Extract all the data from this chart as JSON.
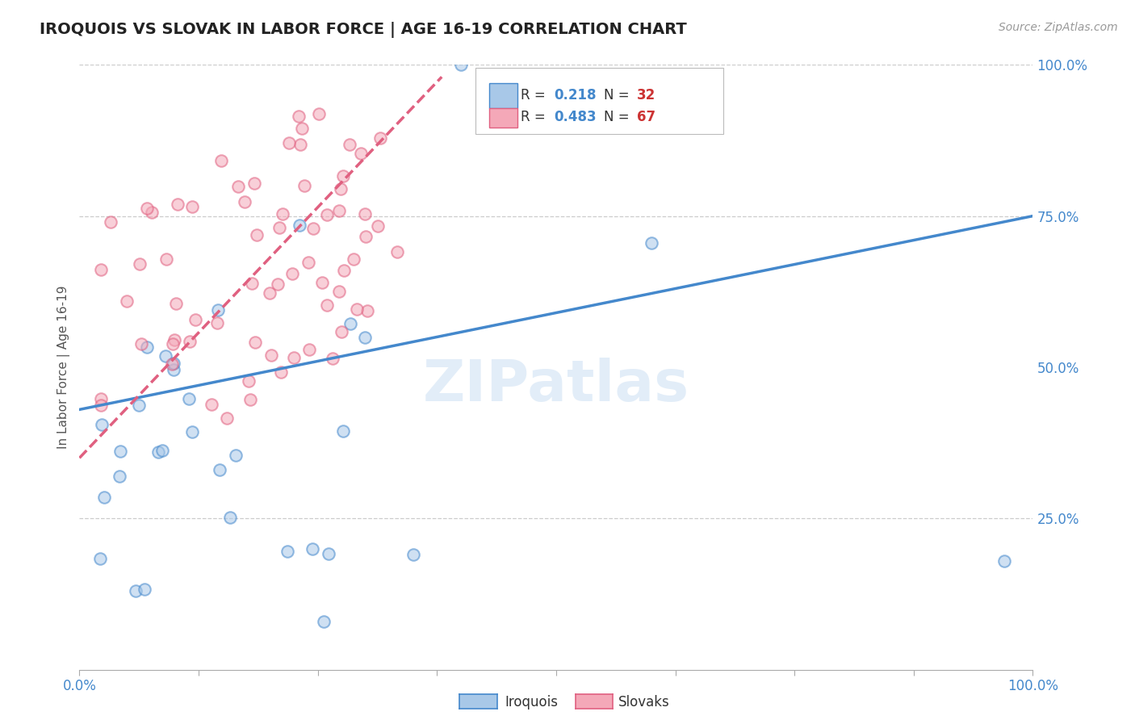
{
  "title": "IROQUOIS VS SLOVAK IN LABOR FORCE | AGE 16-19 CORRELATION CHART",
  "source": "Source: ZipAtlas.com",
  "ylabel": "In Labor Force | Age 16-19",
  "watermark": "ZIPatlas",
  "xlim": [
    0.0,
    1.0
  ],
  "ylim": [
    0.0,
    1.0
  ],
  "legend_R1": "0.218",
  "legend_N1": "32",
  "legend_R2": "0.483",
  "legend_N2": "67",
  "color_iroquois": "#a8c8e8",
  "color_slovak": "#f4a8b8",
  "color_line_iroquois": "#4488cc",
  "color_line_slovak": "#e06080",
  "background_color": "#ffffff",
  "grid_color": "#cccccc",
  "marker_size": 110,
  "marker_alpha": 0.55,
  "marker_edge_width": 1.5,
  "iroquois_line_x0": 0.0,
  "iroquois_line_y0": 0.43,
  "iroquois_line_x1": 1.0,
  "iroquois_line_y1": 0.75,
  "slovak_line_x0": 0.0,
  "slovak_line_y0": 0.35,
  "slovak_line_x1": 0.38,
  "slovak_line_y1": 0.98
}
